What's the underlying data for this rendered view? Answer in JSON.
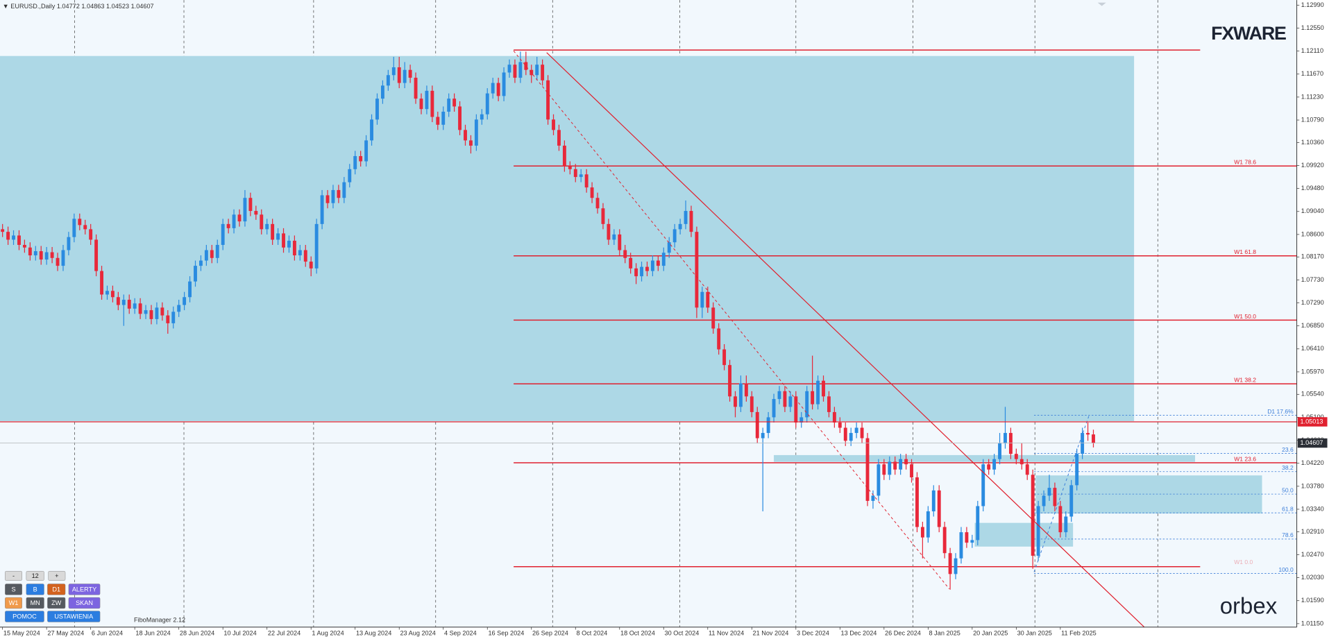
{
  "header": {
    "symbol": "EURUSD.,Daily"
  },
  "chart_data": {
    "type": "candlestick",
    "xlim": [
      -0.46,
      234.92
    ],
    "ylim": [
      1.01084,
      1.13087
    ],
    "colors": {
      "up": "#2a8be0",
      "down": "#e8283a"
    },
    "level": 1.05013,
    "xticks": [
      {
        "value": 0,
        "label": "15 May 2024"
      },
      {
        "value": 8,
        "label": "27 May 2024"
      },
      {
        "value": 16,
        "label": "6 Jun 2024"
      },
      {
        "value": 24,
        "label": "18 Jun 2024"
      },
      {
        "value": 32,
        "label": "28 Jun 2024"
      },
      {
        "value": 40,
        "label": "10 Jul 2024"
      },
      {
        "value": 48,
        "label": "22 Jul 2024"
      },
      {
        "value": 56,
        "label": "1 Aug 2024"
      },
      {
        "value": 64,
        "label": "13 Aug 2024"
      },
      {
        "value": 72,
        "label": "23 Aug 2024"
      },
      {
        "value": 80,
        "label": "4 Sep 2024"
      },
      {
        "value": 88,
        "label": "16 Sep 2024"
      },
      {
        "value": 96,
        "label": "26 Sep 2024"
      },
      {
        "value": 104,
        "label": "8 Oct 2024"
      },
      {
        "value": 112,
        "label": "18 Oct 2024"
      },
      {
        "value": 120,
        "label": "30 Oct 2024"
      },
      {
        "value": 128,
        "label": "11 Nov 2024"
      },
      {
        "value": 136,
        "label": "21 Nov 2024"
      },
      {
        "value": 144,
        "label": "3 Dec 2024"
      },
      {
        "value": 152,
        "label": "13 Dec 2024"
      },
      {
        "value": 160,
        "label": "26 Dec 2024"
      },
      {
        "value": 168,
        "label": "8 Jan 2025"
      },
      {
        "value": 176,
        "label": "20 Jan 2025"
      },
      {
        "value": 184,
        "label": "30 Jan 2025"
      },
      {
        "value": 192,
        "label": "11 Feb 2025"
      }
    ],
    "yticks": [
      {
        "value": 1.1299,
        "label": "1.12990"
      },
      {
        "value": 1.1255,
        "label": "1.12550"
      },
      {
        "value": 1.1211,
        "label": "1.12110"
      },
      {
        "value": 1.1167,
        "label": "1.11670"
      },
      {
        "value": 1.1123,
        "label": "1.11230"
      },
      {
        "value": 1.1079,
        "label": "1.10790"
      },
      {
        "value": 1.1036,
        "label": "1.10360"
      },
      {
        "value": 1.0992,
        "label": "1.09920"
      },
      {
        "value": 1.0948,
        "label": "1.09480"
      },
      {
        "value": 1.0904,
        "label": "1.09040"
      },
      {
        "value": 1.086,
        "label": "1.08600"
      },
      {
        "value": 1.0817,
        "label": "1.08170"
      },
      {
        "value": 1.0773,
        "label": "1.07730"
      },
      {
        "value": 1.0729,
        "label": "1.07290"
      },
      {
        "value": 1.0685,
        "label": "1.06850"
      },
      {
        "value": 1.0641,
        "label": "1.06410"
      },
      {
        "value": 1.0597,
        "label": "1.05970"
      },
      {
        "value": 1.0554,
        "label": "1.05540"
      },
      {
        "value": 1.051,
        "label": "1.05100"
      },
      {
        "value": 1.0466,
        "label": "1.04660"
      },
      {
        "value": 1.0422,
        "label": "1.04220"
      },
      {
        "value": 1.0378,
        "label": "1.03780"
      },
      {
        "value": 1.0334,
        "label": "1.03340"
      },
      {
        "value": 1.0291,
        "label": "1.02910"
      },
      {
        "value": 1.0247,
        "label": "1.02470"
      },
      {
        "value": 1.0203,
        "label": "1.02030"
      },
      {
        "value": 1.0159,
        "label": "1.01590"
      },
      {
        "value": 1.0115,
        "label": "1.01150"
      }
    ],
    "fib_w1": [
      {
        "label": "W1 78.6",
        "price": 1.0991
      },
      {
        "label": "W1 61.8",
        "price": 1.0819
      },
      {
        "label": "W1 50.0",
        "price": 1.0696
      },
      {
        "label": "W1 38.2",
        "price": 1.0574
      },
      {
        "label": "W1 23.6",
        "price": 1.0423
      },
      {
        "label": "W1 0.0",
        "price": 1.0224
      }
    ],
    "fib_d1": [
      {
        "label": "D1 17.6%",
        "price": 1.0514
      },
      {
        "label": "23.6",
        "price": 1.0441
      },
      {
        "label": "38.2",
        "price": 1.0406
      },
      {
        "label": "50.0",
        "price": 1.0363
      },
      {
        "label": "61.8",
        "price": 1.0327
      },
      {
        "label": "78.6",
        "price": 1.0277
      },
      {
        "label": "100.0",
        "price": 1.0211
      }
    ],
    "open": [
      1.087,
      1.0865,
      1.085,
      1.0858,
      1.084,
      1.0835,
      1.082,
      1.0828,
      1.0812,
      1.0826,
      1.0815,
      1.08,
      1.083,
      1.0855,
      1.089,
      1.0878,
      1.087,
      1.085,
      1.079,
      1.0745,
      1.0752,
      1.074,
      1.0725,
      1.0735,
      1.0718,
      1.0728,
      1.0708,
      1.0715,
      1.0698,
      1.072,
      1.0705,
      1.069,
      1.0712,
      1.0725,
      1.074,
      1.077,
      1.08,
      1.081,
      1.083,
      1.0815,
      1.084,
      1.088,
      1.0872,
      1.0898,
      1.0885,
      1.093,
      1.0905,
      1.0898,
      1.087,
      1.088,
      1.085,
      1.0862,
      1.0835,
      1.0848,
      1.082,
      1.083,
      1.0808,
      1.0795,
      1.088,
      1.0935,
      1.092,
      1.0945,
      1.093,
      1.096,
      1.0985,
      1.101,
      1.1,
      1.104,
      1.108,
      1.112,
      1.1145,
      1.1165,
      1.118,
      1.115,
      1.1175,
      1.116,
      1.112,
      1.11,
      1.1135,
      1.1085,
      1.107,
      1.1095,
      1.112,
      1.1105,
      1.106,
      1.104,
      1.103,
      1.108,
      1.109,
      1.113,
      1.115,
      1.1125,
      1.117,
      1.1185,
      1.116,
      1.119,
      1.1175,
      1.1165,
      1.1185,
      1.1155,
      1.108,
      1.106,
      1.103,
      1.099,
      1.0985,
      1.097,
      1.0975,
      1.095,
      1.093,
      1.091,
      1.088,
      1.085,
      1.086,
      1.083,
      1.0815,
      1.0795,
      1.078,
      1.0798,
      1.079,
      1.081,
      1.08,
      1.0825,
      1.0845,
      1.087,
      1.088,
      1.0905,
      1.0865,
      1.072,
      1.075,
      1.072,
      1.068,
      1.064,
      1.061,
      1.055,
      1.053,
      1.0575,
      1.055,
      1.052,
      1.047,
      1.048,
      1.051,
      1.0545,
      1.056,
      1.053,
      1.055,
      1.05,
      1.051,
      1.056,
      1.0535,
      1.058,
      1.055,
      1.052,
      1.05,
      1.049,
      1.0465,
      1.048,
      1.049,
      1.047,
      1.035,
      1.036,
      1.042,
      1.04,
      1.0425,
      1.041,
      1.043,
      1.042,
      1.0395,
      1.03,
      1.028,
      1.033,
      1.037,
      1.03,
      1.025,
      1.021,
      1.024,
      1.029,
      1.027,
      1.0275,
      1.034,
      1.042,
      1.041,
      1.043,
      1.046,
      1.048,
      1.044,
      1.043,
      1.042,
      1.04,
      1.0245,
      1.034,
      1.036,
      1.0375,
      1.034,
      1.029,
      1.032,
      1.038,
      1.044,
      1.048,
      1.04772
    ],
    "high": [
      1.088,
      1.0875,
      1.0868,
      1.0868,
      1.085,
      1.0845,
      1.0838,
      1.0838,
      1.0836,
      1.0836,
      1.0825,
      1.084,
      1.0865,
      1.09,
      1.09,
      1.0888,
      1.088,
      1.086,
      1.08,
      1.0762,
      1.0762,
      1.075,
      1.0745,
      1.0745,
      1.0738,
      1.0738,
      1.0725,
      1.0725,
      1.073,
      1.073,
      1.0715,
      1.0722,
      1.0735,
      1.075,
      1.078,
      1.081,
      1.082,
      1.084,
      1.084,
      1.085,
      1.089,
      1.089,
      1.0908,
      1.0908,
      1.0945,
      1.094,
      1.0915,
      1.0908,
      1.089,
      1.089,
      1.0872,
      1.0872,
      1.0858,
      1.0858,
      1.084,
      1.084,
      1.0818,
      1.089,
      1.0945,
      1.0945,
      1.0955,
      1.0955,
      1.097,
      1.0995,
      1.102,
      1.102,
      1.105,
      1.109,
      1.113,
      1.1155,
      1.1175,
      1.12,
      1.12,
      1.119,
      1.1185,
      1.117,
      1.113,
      1.1145,
      1.1145,
      1.1095,
      1.1105,
      1.113,
      1.113,
      1.1115,
      1.107,
      1.105,
      1.109,
      1.11,
      1.114,
      1.116,
      1.116,
      1.118,
      1.1195,
      1.1195,
      1.121,
      1.121,
      1.1185,
      1.12,
      1.1195,
      1.1165,
      1.109,
      1.107,
      1.104,
      1.1,
      1.0995,
      1.0985,
      1.0985,
      1.096,
      1.094,
      1.092,
      1.089,
      1.087,
      1.087,
      1.084,
      1.0825,
      1.0805,
      1.0808,
      1.0808,
      1.082,
      1.082,
      1.0835,
      1.0855,
      1.088,
      1.089,
      1.0925,
      1.0915,
      1.0875,
      1.076,
      1.076,
      1.073,
      1.069,
      1.065,
      1.062,
      1.056,
      1.059,
      1.059,
      1.056,
      1.053,
      1.049,
      1.052,
      1.0555,
      1.057,
      1.057,
      1.056,
      1.056,
      1.052,
      1.057,
      1.0628,
      1.059,
      1.059,
      1.056,
      1.053,
      1.051,
      1.05,
      1.049,
      1.05,
      1.05,
      1.048,
      1.037,
      1.043,
      1.043,
      1.0435,
      1.0435,
      1.044,
      1.044,
      1.043,
      1.0405,
      1.031,
      1.034,
      1.038,
      1.038,
      1.031,
      1.026,
      1.025,
      1.03,
      1.03,
      1.0285,
      1.035,
      1.043,
      1.043,
      1.044,
      1.048,
      1.053,
      1.049,
      1.045,
      1.046,
      1.043,
      1.041,
      1.035,
      1.037,
      1.04,
      1.0385,
      1.035,
      1.033,
      1.039,
      1.045,
      1.049,
      1.05,
      1.04863
    ],
    "low": [
      1.0855,
      1.084,
      1.084,
      1.083,
      1.0825,
      1.081,
      1.081,
      1.0802,
      1.0802,
      1.0805,
      1.079,
      1.079,
      1.082,
      1.0845,
      1.0868,
      1.086,
      1.084,
      1.078,
      1.0735,
      1.0735,
      1.073,
      1.0715,
      1.0685,
      1.0708,
      1.0708,
      1.0698,
      1.0698,
      1.0688,
      1.0688,
      1.0695,
      1.067,
      1.068,
      1.0702,
      1.0715,
      1.073,
      1.076,
      1.079,
      1.08,
      1.0805,
      1.0805,
      1.083,
      1.0862,
      1.0862,
      1.0875,
      1.0875,
      1.0895,
      1.0888,
      1.086,
      1.086,
      1.084,
      1.084,
      1.0825,
      1.0825,
      1.081,
      1.081,
      1.0798,
      1.078,
      1.0785,
      1.087,
      1.091,
      1.091,
      1.092,
      1.092,
      1.095,
      1.0975,
      1.099,
      1.099,
      1.103,
      1.107,
      1.111,
      1.1135,
      1.1155,
      1.114,
      1.114,
      1.115,
      1.111,
      1.109,
      1.109,
      1.1075,
      1.106,
      1.106,
      1.1085,
      1.1095,
      1.105,
      1.103,
      1.1015,
      1.102,
      1.107,
      1.108,
      1.112,
      1.1115,
      1.1115,
      1.116,
      1.115,
      1.115,
      1.1165,
      1.115,
      1.1155,
      1.1145,
      1.107,
      1.105,
      1.102,
      1.098,
      1.0975,
      1.096,
      1.096,
      1.094,
      1.092,
      1.09,
      1.087,
      1.084,
      1.084,
      1.082,
      1.0805,
      1.0785,
      1.0765,
      1.077,
      1.078,
      1.078,
      1.079,
      1.079,
      1.0815,
      1.0835,
      1.086,
      1.087,
      1.0855,
      1.07,
      1.07,
      1.071,
      1.067,
      1.063,
      1.06,
      1.054,
      1.051,
      1.052,
      1.054,
      1.051,
      1.046,
      1.033,
      1.047,
      1.05,
      1.0535,
      1.052,
      1.052,
      1.049,
      1.049,
      1.05,
      1.0525,
      1.0525,
      1.054,
      1.051,
      1.049,
      1.048,
      1.0455,
      1.0455,
      1.047,
      1.046,
      1.034,
      1.0335,
      1.035,
      1.039,
      1.039,
      1.04,
      1.04,
      1.041,
      1.0385,
      1.029,
      1.024,
      1.027,
      1.032,
      1.029,
      1.024,
      1.018,
      1.02,
      1.023,
      1.026,
      1.026,
      1.0265,
      1.033,
      1.04,
      1.04,
      1.042,
      1.045,
      1.043,
      1.042,
      1.041,
      1.039,
      1.022,
      1.0235,
      1.033,
      1.035,
      1.033,
      1.028,
      1.028,
      1.031,
      1.037,
      1.043,
      1.0465,
      1.04523
    ],
    "close": [
      1.0865,
      1.085,
      1.0858,
      1.084,
      1.0835,
      1.082,
      1.0828,
      1.0812,
      1.0826,
      1.0815,
      1.08,
      1.083,
      1.0855,
      1.089,
      1.0878,
      1.087,
      1.085,
      1.079,
      1.0745,
      1.0752,
      1.074,
      1.0725,
      1.0735,
      1.0718,
      1.0728,
      1.0708,
      1.0715,
      1.0698,
      1.072,
      1.0705,
      1.069,
      1.0712,
      1.0725,
      1.074,
      1.077,
      1.08,
      1.081,
      1.083,
      1.0815,
      1.084,
      1.088,
      1.0872,
      1.0898,
      1.0885,
      1.093,
      1.0905,
      1.0898,
      1.087,
      1.088,
      1.085,
      1.0862,
      1.0835,
      1.0848,
      1.082,
      1.083,
      1.0808,
      1.0795,
      1.088,
      1.0935,
      1.092,
      1.0945,
      1.093,
      1.096,
      1.0985,
      1.101,
      1.1,
      1.104,
      1.108,
      1.112,
      1.1145,
      1.1165,
      1.118,
      1.115,
      1.1175,
      1.116,
      1.112,
      1.11,
      1.1135,
      1.1085,
      1.107,
      1.1095,
      1.112,
      1.1105,
      1.106,
      1.104,
      1.103,
      1.108,
      1.109,
      1.113,
      1.115,
      1.1125,
      1.117,
      1.1185,
      1.116,
      1.119,
      1.1175,
      1.1165,
      1.1185,
      1.1155,
      1.108,
      1.106,
      1.103,
      1.099,
      1.0985,
      1.097,
      1.0975,
      1.095,
      1.093,
      1.091,
      1.088,
      1.085,
      1.086,
      1.083,
      1.0815,
      1.0795,
      1.078,
      1.0798,
      1.079,
      1.081,
      1.08,
      1.0825,
      1.0845,
      1.087,
      1.088,
      1.0905,
      1.0865,
      1.072,
      1.075,
      1.072,
      1.068,
      1.064,
      1.061,
      1.055,
      1.053,
      1.0575,
      1.055,
      1.052,
      1.047,
      1.048,
      1.051,
      1.0545,
      1.056,
      1.053,
      1.055,
      1.05,
      1.051,
      1.056,
      1.0535,
      1.058,
      1.055,
      1.052,
      1.05,
      1.049,
      1.0465,
      1.048,
      1.049,
      1.047,
      1.035,
      1.036,
      1.042,
      1.04,
      1.0425,
      1.041,
      1.043,
      1.042,
      1.0395,
      1.03,
      1.028,
      1.033,
      1.037,
      1.03,
      1.025,
      1.021,
      1.024,
      1.029,
      1.027,
      1.0275,
      1.034,
      1.042,
      1.041,
      1.043,
      1.046,
      1.048,
      1.044,
      1.043,
      1.042,
      1.04,
      1.0245,
      1.034,
      1.036,
      1.0375,
      1.034,
      1.029,
      1.032,
      1.038,
      1.044,
      1.048,
      1.0477,
      1.04607
    ]
  },
  "toolbar": {
    "buttons": [
      "-",
      "12",
      "+",
      "S",
      "B",
      "D1",
      "ALERTY",
      "W1",
      "MN",
      "ZW",
      "SKAN",
      "POMOC",
      "USTAWIENIA"
    ]
  },
  "indicator": "FiboManager 2.12",
  "logos": [
    "FXWARE",
    "orbex"
  ]
}
